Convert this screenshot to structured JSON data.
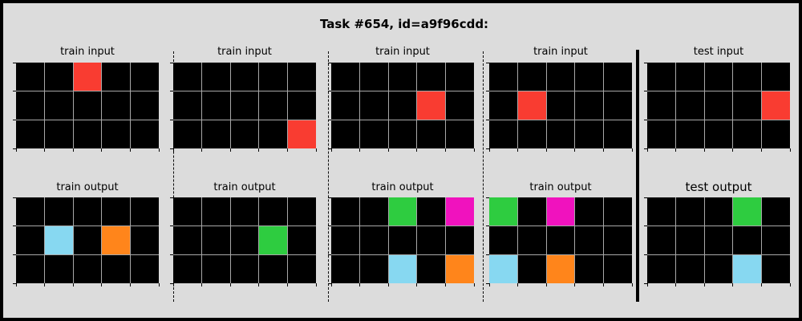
{
  "title": "Task #654, id=a9f96cdd:",
  "colors": {
    "background": "#dcdcdc",
    "grid_bg": "#000000",
    "grid_line": "#a8a8a8",
    "red": "#f93c31",
    "cyan": "#87d8f1",
    "orange": "#ff851b",
    "green": "#2ecc40",
    "magenta": "#f012be"
  },
  "grid_size": {
    "rows": 3,
    "cols": 5
  },
  "pairs": [
    {
      "input_label": "train input",
      "output_label": "train output",
      "input_cells": [
        {
          "r": 0,
          "c": 2,
          "color": "red"
        }
      ],
      "output_cells": [
        {
          "r": 1,
          "c": 1,
          "color": "cyan"
        },
        {
          "r": 1,
          "c": 3,
          "color": "orange"
        }
      ]
    },
    {
      "input_label": "train input",
      "output_label": "train output",
      "input_cells": [
        {
          "r": 2,
          "c": 4,
          "color": "red"
        }
      ],
      "output_cells": [
        {
          "r": 1,
          "c": 3,
          "color": "green"
        }
      ]
    },
    {
      "input_label": "train input",
      "output_label": "train output",
      "input_cells": [
        {
          "r": 1,
          "c": 3,
          "color": "red"
        }
      ],
      "output_cells": [
        {
          "r": 0,
          "c": 2,
          "color": "green"
        },
        {
          "r": 0,
          "c": 4,
          "color": "magenta"
        },
        {
          "r": 2,
          "c": 2,
          "color": "cyan"
        },
        {
          "r": 2,
          "c": 4,
          "color": "orange"
        }
      ]
    },
    {
      "input_label": "train input",
      "output_label": "train output",
      "input_cells": [
        {
          "r": 1,
          "c": 1,
          "color": "red"
        }
      ],
      "output_cells": [
        {
          "r": 0,
          "c": 0,
          "color": "green"
        },
        {
          "r": 0,
          "c": 2,
          "color": "magenta"
        },
        {
          "r": 2,
          "c": 0,
          "color": "cyan"
        },
        {
          "r": 2,
          "c": 2,
          "color": "orange"
        }
      ]
    },
    {
      "input_label": "test input",
      "output_label": "test output",
      "input_cells": [
        {
          "r": 1,
          "c": 4,
          "color": "red"
        }
      ],
      "output_cells": [
        {
          "r": 0,
          "c": 3,
          "color": "green"
        },
        {
          "r": 2,
          "c": 3,
          "color": "cyan"
        }
      ]
    }
  ]
}
